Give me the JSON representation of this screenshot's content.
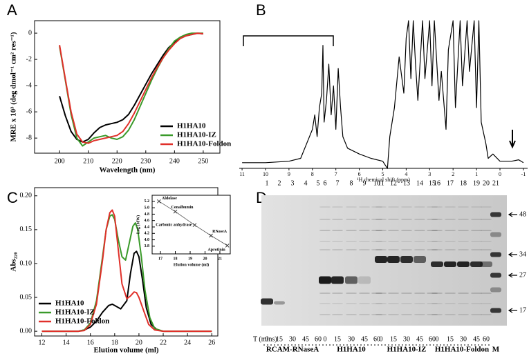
{
  "chart_data": [
    {
      "type": "line",
      "panel_label": "A",
      "xlabel": "Wavelength (nm)",
      "ylabel": "MRE x 10³ (deg dmol⁻¹ cm² res⁻¹)",
      "x": [
        200,
        202,
        204,
        206,
        208,
        210,
        212,
        214,
        216,
        218,
        220,
        222,
        224,
        226,
        228,
        230,
        232,
        234,
        236,
        238,
        240,
        242,
        244,
        246,
        248,
        250
      ],
      "series": [
        {
          "name": "H1HA10",
          "color": "#000000",
          "values": [
            -4.8,
            -6.3,
            -7.5,
            -8.1,
            -8.3,
            -8.1,
            -7.6,
            -7.2,
            -7.0,
            -6.9,
            -6.8,
            -6.6,
            -6.2,
            -5.5,
            -4.7,
            -3.9,
            -3.1,
            -2.4,
            -1.7,
            -1.1,
            -0.7,
            -0.4,
            -0.2,
            -0.1,
            0,
            -0.05
          ]
        },
        {
          "name": "H1HA10-IZ",
          "color": "#3a9a2a",
          "values": [
            -1.0,
            -3.6,
            -6.2,
            -8.0,
            -8.6,
            -8.3,
            -8.0,
            -7.9,
            -7.8,
            -8.0,
            -8.1,
            -7.9,
            -7.4,
            -6.6,
            -5.6,
            -4.6,
            -3.6,
            -2.7,
            -1.9,
            -1.2,
            -0.6,
            -0.3,
            -0.1,
            0,
            0,
            0
          ]
        },
        {
          "name": "H1HA10-Foldon",
          "color": "#e0302a",
          "values": [
            -0.9,
            -3.5,
            -6.0,
            -7.7,
            -8.3,
            -8.4,
            -8.2,
            -8.1,
            -8.0,
            -7.9,
            -7.8,
            -7.5,
            -6.9,
            -6.1,
            -5.2,
            -4.3,
            -3.4,
            -2.6,
            -1.9,
            -1.3,
            -0.8,
            -0.4,
            -0.2,
            -0.1,
            0,
            -0.05
          ]
        }
      ],
      "xlim": [
        191.3,
        255.8
      ],
      "ylim": [
        -9.15,
        0.95
      ],
      "xticks": [
        200,
        210,
        220,
        230,
        240,
        250
      ],
      "yticks": [
        0,
        -2,
        -4,
        -6,
        -8
      ],
      "legend": "lower right"
    },
    {
      "type": "line",
      "panel_label": "B",
      "xlabel": "¹H chemical shift (ppm)",
      "color": "#000000",
      "x": [
        11,
        10,
        9,
        8.5,
        8.2,
        8.0,
        7.9,
        7.8,
        7.7,
        7.6,
        7.55,
        7.5,
        7.4,
        7.3,
        7.2,
        7.1,
        7.0,
        6.9,
        6.8,
        6.7,
        6.5,
        6.0,
        5.5,
        5.0,
        4.8,
        4.7,
        4.5,
        4.3,
        4.1,
        4.0,
        3.9,
        3.8,
        3.7,
        3.6,
        3.5,
        3.3,
        3.2,
        3.0,
        2.9,
        2.8,
        2.6,
        2.5,
        2.3,
        2.2,
        2.0,
        1.9,
        1.7,
        1.6,
        1.4,
        1.3,
        1.1,
        1.0,
        0.9,
        0.8,
        0.6,
        0.5,
        0.3,
        0.0,
        -0.5,
        -0.8,
        -1
      ],
      "values": [
        2,
        2,
        3,
        5,
        17,
        25,
        35,
        20,
        40,
        50,
        83,
        30,
        45,
        70,
        35,
        55,
        25,
        67,
        40,
        20,
        12,
        8,
        5,
        3,
        -2,
        20,
        40,
        75,
        50,
        88,
        100,
        60,
        100,
        70,
        45,
        100,
        60,
        100,
        55,
        100,
        45,
        65,
        25,
        80,
        100,
        40,
        100,
        55,
        100,
        65,
        100,
        40,
        100,
        30,
        15,
        5,
        8,
        3,
        3,
        4,
        2
      ],
      "xlim": [
        11.12,
        -1.18
      ],
      "ylim": [
        -1.9,
        100
      ],
      "xticks": [
        11,
        10,
        9,
        8,
        7,
        6,
        5,
        4,
        3,
        2,
        1,
        0,
        -1
      ]
    },
    {
      "type": "line",
      "panel_label": "C",
      "xlabel": "Elution volume (ml)",
      "ylabel": "Abs₂₂₀",
      "series": [
        {
          "name": "H1HA10",
          "color": "#000000",
          "x": [
            12,
            14,
            15,
            15.5,
            16,
            16.5,
            17,
            17.5,
            17.8,
            18,
            18.5,
            19,
            19.3,
            19.6,
            19.8,
            20,
            20.3,
            20.6,
            21,
            21.5,
            22,
            26
          ],
          "values": [
            0,
            0,
            0,
            0.002,
            0.006,
            0.015,
            0.028,
            0.038,
            0.04,
            0.038,
            0.033,
            0.045,
            0.085,
            0.115,
            0.118,
            0.11,
            0.075,
            0.035,
            0.01,
            0.002,
            0,
            0
          ]
        },
        {
          "name": "H1HA10-IZ",
          "color": "#3a9a2a",
          "x": [
            12,
            15,
            15.5,
            16,
            16.5,
            17,
            17.3,
            17.6,
            17.8,
            18,
            18.3,
            18.6,
            18.9,
            19.2,
            19.5,
            19.7,
            19.9,
            20.2,
            20.5,
            20.9,
            21.3,
            22,
            26
          ],
          "values": [
            0,
            0,
            0.002,
            0.012,
            0.045,
            0.11,
            0.15,
            0.17,
            0.172,
            0.165,
            0.135,
            0.11,
            0.105,
            0.13,
            0.155,
            0.16,
            0.15,
            0.11,
            0.06,
            0.02,
            0.004,
            0,
            0
          ]
        },
        {
          "name": "H1HA10-Foldon",
          "color": "#e0302a",
          "x": [
            12,
            15,
            15.5,
            16,
            16.5,
            17,
            17.3,
            17.6,
            17.8,
            18,
            18.3,
            18.6,
            19,
            19.3,
            19.6,
            19.8,
            20,
            20.4,
            20.8,
            21.3,
            22,
            26
          ],
          "values": [
            0,
            0,
            0.001,
            0.01,
            0.04,
            0.105,
            0.15,
            0.175,
            0.179,
            0.17,
            0.12,
            0.07,
            0.048,
            0.052,
            0.058,
            0.057,
            0.05,
            0.03,
            0.01,
            0.002,
            0,
            0
          ]
        }
      ],
      "xlim": [
        11.4,
        26.5
      ],
      "ylim": [
        -0.007,
        0.212
      ],
      "xticks": [
        12,
        14,
        16,
        18,
        20,
        22,
        24,
        26
      ],
      "yticks": [
        {
          "value": 0,
          "label": "0.00"
        },
        {
          "value": 0.05,
          "label": "0.05"
        },
        {
          "value": 0.1,
          "label": "0.10"
        },
        {
          "value": 0.15,
          "label": "0.15"
        },
        {
          "value": 0.2,
          "label": "0.20"
        }
      ],
      "legend": "lower left",
      "inset": {
        "type": "scatter",
        "xlabel": "Elution volume (ml)",
        "ylabel": "Log (MW)",
        "color": "#333333",
        "x": [
          16.9,
          18.0,
          19.3,
          20.4,
          21.5
        ],
        "values": [
          5.2,
          4.88,
          4.46,
          4.13,
          3.82
        ],
        "labels": [
          "Aldolase",
          "Conalbumin",
          "Carbonic anhydrase",
          "RNaseA",
          "Aprotinin"
        ],
        "xlim": [
          16.44,
          21.7
        ],
        "ylim": [
          3.56,
          5.39
        ],
        "xticks": [
          17,
          18,
          19,
          20,
          21
        ],
        "yticks": [
          3.8,
          {
            "value": 4,
            "label": "4.0"
          },
          4.2,
          4.4,
          4.6,
          4.8,
          {
            "value": 5,
            "label": "5.0"
          },
          5.2
        ]
      }
    }
  ],
  "gel": {
    "panel_label": "D",
    "lanes": [
      "1",
      "2",
      "3",
      "4",
      "5",
      "6",
      "7",
      "8",
      "9",
      "10",
      "11",
      "12",
      "13",
      "14",
      "15",
      "16",
      "17",
      "18",
      "19",
      "20",
      "21"
    ],
    "time_label": "T (mins)",
    "groups": [
      {
        "label": "RCAM-RNaseA",
        "times": [
          "0",
          "15",
          "30",
          "45",
          "60"
        ]
      },
      {
        "label": "H1HA10",
        "times": [
          "0",
          "15",
          "30",
          "45",
          "60"
        ]
      },
      {
        "label": "H1HA10-IZ",
        "times": [
          "0",
          "15",
          "30",
          "45",
          "60"
        ]
      },
      {
        "label": "H1HA10-Foldon",
        "times": [
          "0",
          "15",
          "30",
          "45",
          "60"
        ]
      }
    ],
    "marker_lane": "M",
    "markers": [
      "48",
      "34",
      "27",
      "17"
    ]
  }
}
